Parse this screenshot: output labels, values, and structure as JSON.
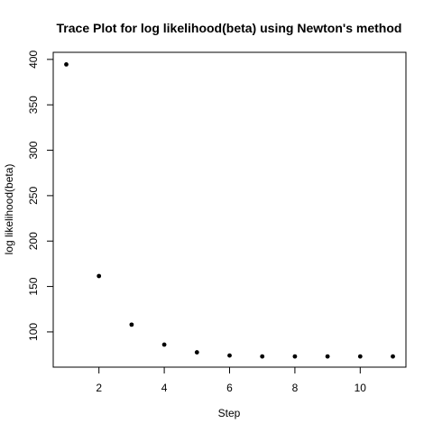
{
  "chart_data": {
    "type": "scatter",
    "title": "Trace Plot for log likelihood(beta) using Newton's method",
    "xlabel": "Step",
    "ylabel": "log likelihood(beta)",
    "xlim": [
      0.6,
      11.4
    ],
    "ylim": [
      61.2,
      407.8
    ],
    "x_ticks": [
      2,
      4,
      6,
      8,
      10
    ],
    "x_tick_labels": [
      "2",
      "4",
      "6",
      "8",
      "10"
    ],
    "y_ticks": [
      100,
      150,
      200,
      250,
      300,
      350,
      400
    ],
    "y_tick_labels": [
      "100",
      "150",
      "200",
      "250",
      "300",
      "350",
      "400"
    ],
    "grid": false,
    "legend": "none",
    "x": [
      1,
      2,
      3,
      4,
      5,
      6,
      7,
      8,
      9,
      10,
      11
    ],
    "values": [
      394.5,
      161.5,
      108.0,
      86.0,
      77.5,
      74.0,
      73.0,
      73.0,
      73.0,
      73.0,
      73.0
    ],
    "point_color": "#000000"
  }
}
